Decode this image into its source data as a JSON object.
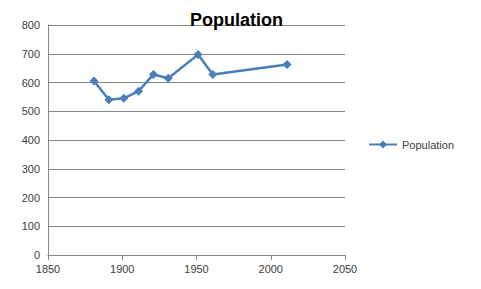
{
  "chart_data": {
    "type": "line",
    "title": "Population",
    "x": [
      1881,
      1891,
      1901,
      1911,
      1921,
      1931,
      1951,
      1961,
      2011
    ],
    "series": [
      {
        "name": "Population",
        "color": "#4a7ebb",
        "marker": "diamond",
        "values": [
          605,
          540,
          545,
          570,
          628,
          615,
          697,
          628,
          663
        ]
      }
    ],
    "xlim": [
      1850,
      2050
    ],
    "xticks": [
      1850,
      1900,
      1950,
      2000,
      2050
    ],
    "ylim": [
      0,
      800
    ],
    "yticks": [
      0,
      100,
      200,
      300,
      400,
      500,
      600,
      700,
      800
    ],
    "grid": true,
    "legend": "right"
  }
}
